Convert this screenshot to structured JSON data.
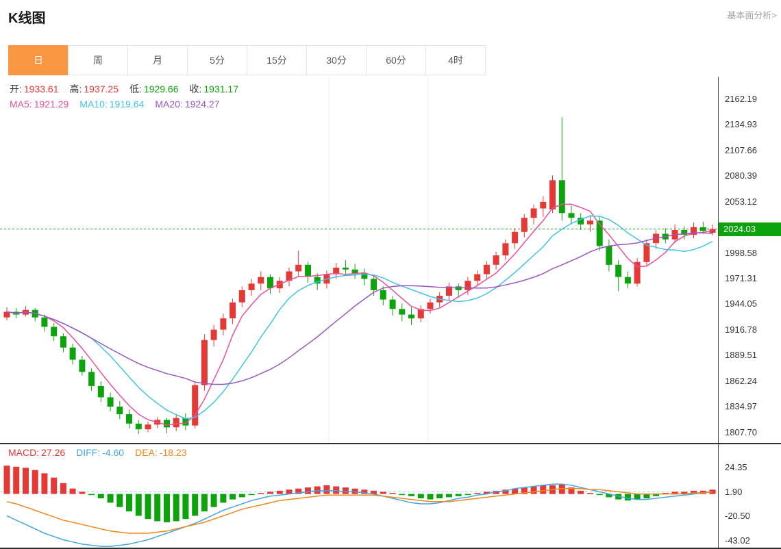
{
  "header": {
    "title": "K线图",
    "link_label": "基本面分析>"
  },
  "tabs": {
    "items": [
      {
        "label": "日",
        "active": true
      },
      {
        "label": "周"
      },
      {
        "label": "月"
      },
      {
        "label": "5分"
      },
      {
        "label": "15分"
      },
      {
        "label": "30分"
      },
      {
        "label": "60分"
      },
      {
        "label": "4时"
      }
    ]
  },
  "ohlc_legend": {
    "items": [
      {
        "label": "开:",
        "value": "1933.61",
        "label_color": "#333333",
        "value_color": "#e53935"
      },
      {
        "label": "高:",
        "value": "1937.25",
        "label_color": "#333333",
        "value_color": "#e53935"
      },
      {
        "label": "低:",
        "value": "1929.66",
        "label_color": "#333333",
        "value_color": "#0ca30c"
      },
      {
        "label": "收:",
        "value": "1931.17",
        "label_color": "#333333",
        "value_color": "#0ca30c"
      }
    ]
  },
  "ma_legend": {
    "items": [
      {
        "label": "MA5:",
        "value": "1921.29",
        "label_color": "#ea4f9c",
        "value_color": "#ea4f9c"
      },
      {
        "label": "MA10:",
        "value": "1919.64",
        "label_color": "#3fc3e8",
        "value_color": "#3fc3e8"
      },
      {
        "label": "MA20:",
        "value": "1924.27",
        "label_color": "#9a55c2",
        "value_color": "#9a55c2"
      }
    ]
  },
  "macd_legend": {
    "items": [
      {
        "label": "MACD:",
        "value": "27.26",
        "label_color": "#e53935",
        "value_color": "#e53935"
      },
      {
        "label": "DIFF:",
        "value": "-4.60",
        "label_color": "#42a6e0",
        "value_color": "#42a6e0"
      },
      {
        "label": "DEA:",
        "value": "-18.23",
        "label_color": "#f0861c",
        "value_color": "#f0861c"
      }
    ]
  },
  "colors": {
    "up": "#e53935",
    "down": "#0ca30c",
    "tab_active": "#fa9642",
    "current_tag_bg": "#0ca30c",
    "ma5": "#ea4f9c",
    "ma10": "#3fc3e8",
    "ma20": "#9a55c2",
    "diff": "#42a6e0",
    "dea": "#f0861c",
    "baseline": "#8fd8ec",
    "axis_text": "#333333"
  },
  "chart_data": {
    "type": "candlestick",
    "title": "K线图 (日)",
    "legend_position": "top-left",
    "panels": [
      {
        "name": "price",
        "ylim": [
          1796.5,
          2186.2
        ],
        "axis_labels": [
          "2162.19",
          "2134.93",
          "2107.66",
          "2080.39",
          "2053.12",
          "1998.58",
          "1971.31",
          "1944.05",
          "1916.78",
          "1889.51",
          "1862.24",
          "1834.97",
          "1807.70"
        ],
        "current_price": 2024.03,
        "current_price_label": "2024.03",
        "ma_periods": [
          5,
          10,
          20
        ],
        "candles": [
          [
            1930,
            1941,
            1927,
            1936
          ],
          [
            1936,
            1940,
            1929,
            1933
          ],
          [
            1933,
            1942,
            1931,
            1938
          ],
          [
            1938,
            1940,
            1926,
            1930
          ],
          [
            1930,
            1933,
            1915,
            1920
          ],
          [
            1920,
            1924,
            1905,
            1910
          ],
          [
            1910,
            1913,
            1893,
            1898
          ],
          [
            1898,
            1902,
            1880,
            1885
          ],
          [
            1885,
            1889,
            1868,
            1872
          ],
          [
            1872,
            1876,
            1852,
            1857
          ],
          [
            1857,
            1862,
            1840,
            1845
          ],
          [
            1845,
            1850,
            1830,
            1835
          ],
          [
            1835,
            1841,
            1822,
            1827
          ],
          [
            1827,
            1832,
            1812,
            1817
          ],
          [
            1817,
            1821,
            1806,
            1811
          ],
          [
            1811,
            1819,
            1808,
            1816
          ],
          [
            1816,
            1824,
            1812,
            1821
          ],
          [
            1821,
            1823,
            1807,
            1813
          ],
          [
            1813,
            1826,
            1809,
            1823
          ],
          [
            1823,
            1828,
            1810,
            1815
          ],
          [
            1815,
            1862,
            1812,
            1858
          ],
          [
            1858,
            1912,
            1852,
            1906
          ],
          [
            1906,
            1922,
            1899,
            1917
          ],
          [
            1917,
            1934,
            1911,
            1929
          ],
          [
            1929,
            1950,
            1923,
            1946
          ],
          [
            1946,
            1963,
            1941,
            1959
          ],
          [
            1959,
            1971,
            1953,
            1966
          ],
          [
            1966,
            1979,
            1959,
            1973
          ],
          [
            1973,
            1976,
            1955,
            1961
          ],
          [
            1961,
            1973,
            1956,
            1969
          ],
          [
            1969,
            1983,
            1963,
            1979
          ],
          [
            1979,
            2001,
            1973,
            1986
          ],
          [
            1986,
            1989,
            1967,
            1973
          ],
          [
            1973,
            1977,
            1959,
            1966
          ],
          [
            1966,
            1980,
            1961,
            1976
          ],
          [
            1976,
            1988,
            1971,
            1983
          ],
          [
            1983,
            1991,
            1976,
            1981
          ],
          [
            1981,
            1987,
            1971,
            1977
          ],
          [
            1977,
            1982,
            1964,
            1971
          ],
          [
            1971,
            1974,
            1953,
            1959
          ],
          [
            1959,
            1963,
            1943,
            1949
          ],
          [
            1949,
            1953,
            1932,
            1939
          ],
          [
            1939,
            1945,
            1926,
            1933
          ],
          [
            1933,
            1941,
            1922,
            1929
          ],
          [
            1929,
            1943,
            1925,
            1939
          ],
          [
            1939,
            1950,
            1934,
            1946
          ],
          [
            1946,
            1957,
            1941,
            1953
          ],
          [
            1953,
            1967,
            1948,
            1963
          ],
          [
            1963,
            1966,
            1951,
            1959
          ],
          [
            1959,
            1973,
            1954,
            1969
          ],
          [
            1969,
            1980,
            1963,
            1976
          ],
          [
            1976,
            1990,
            1971,
            1986
          ],
          [
            1986,
            2000,
            1981,
            1996
          ],
          [
            1996,
            2013,
            1991,
            2009
          ],
          [
            2009,
            2025,
            2003,
            2021
          ],
          [
            2021,
            2040,
            2015,
            2036
          ],
          [
            2036,
            2050,
            2029,
            2046
          ],
          [
            2046,
            2059,
            2037,
            2053
          ],
          [
            2045,
            2081,
            2041,
            2076
          ],
          [
            2076,
            2143,
            2033,
            2041
          ],
          [
            2041,
            2049,
            2029,
            2036
          ],
          [
            2036,
            2041,
            2023,
            2029
          ],
          [
            2029,
            2039,
            2021,
            2033
          ],
          [
            2033,
            2037,
            2001,
            2006
          ],
          [
            2006,
            2013,
            1979,
            1986
          ],
          [
            1986,
            1991,
            1958,
            1973
          ],
          [
            1973,
            1979,
            1961,
            1966
          ],
          [
            1966,
            1993,
            1963,
            1989
          ],
          [
            1989,
            2013,
            1985,
            2009
          ],
          [
            2009,
            2023,
            2003,
            2019
          ],
          [
            2019,
            2025,
            2009,
            2013
          ],
          [
            2013,
            2029,
            2009,
            2023
          ],
          [
            2023,
            2027,
            2013,
            2018
          ],
          [
            2018,
            2031,
            2014,
            2026
          ],
          [
            2026,
            2032,
            2019,
            2022
          ],
          [
            2020,
            2029,
            2017,
            2024.03
          ]
        ]
      },
      {
        "name": "macd",
        "ylim": [
          -49.2,
          45.6
        ],
        "axis_labels": [
          "24.35",
          "1.90",
          "-20.50",
          "-43.02"
        ],
        "baseline": 1.9,
        "hist": [
          26,
          25,
          24,
          22,
          19,
          15,
          10,
          5,
          2,
          -1,
          -4,
          -8,
          -12,
          -16,
          -20,
          -23,
          -25,
          -26,
          -25,
          -23,
          -20,
          -16,
          -12,
          -8,
          -5,
          -3,
          -1,
          1,
          2,
          3,
          4,
          5,
          6,
          7,
          8,
          7,
          6,
          5,
          4,
          3,
          2,
          1,
          -1,
          -2,
          -4,
          -5,
          -4,
          -3,
          -2,
          -1,
          1,
          2,
          3,
          4,
          5,
          6,
          7,
          8,
          8,
          9,
          6,
          3,
          1,
          -1,
          -3,
          -5,
          -6,
          -5,
          -4,
          -2,
          1,
          2,
          2,
          3,
          3,
          4
        ],
        "diff": [
          -20,
          -24,
          -28,
          -32,
          -36,
          -39,
          -42,
          -44,
          -46,
          -47,
          -48,
          -48,
          -47,
          -46,
          -44,
          -42,
          -39,
          -36,
          -33,
          -30,
          -27,
          -23,
          -19,
          -15,
          -12,
          -9,
          -6,
          -4,
          -2,
          -1,
          0,
          1,
          2,
          3,
          3,
          3,
          2,
          2,
          1,
          0,
          -2,
          -4,
          -6,
          -8,
          -9,
          -9,
          -8,
          -6,
          -4,
          -3,
          -1,
          0,
          2,
          3,
          5,
          6,
          7,
          8,
          9,
          9,
          8,
          6,
          4,
          2,
          0,
          -2,
          -4,
          -5,
          -5,
          -4,
          -3,
          -2,
          -1,
          0,
          1,
          2
        ],
        "dea": [
          -7,
          -9,
          -12,
          -15,
          -18,
          -21,
          -24,
          -26,
          -28,
          -30,
          -32,
          -34,
          -35,
          -36,
          -36,
          -36,
          -35,
          -34,
          -32,
          -30,
          -28,
          -26,
          -23,
          -20,
          -17,
          -14,
          -12,
          -10,
          -8,
          -6,
          -5,
          -4,
          -3,
          -2,
          -1,
          -1,
          -1,
          -1,
          -1,
          -1,
          -2,
          -3,
          -4,
          -5,
          -6,
          -7,
          -7,
          -7,
          -6,
          -5,
          -4,
          -3,
          -2,
          -1,
          0,
          1,
          2,
          3,
          4,
          5,
          5,
          5,
          4,
          4,
          3,
          2,
          1,
          0,
          0,
          0,
          0,
          0,
          0,
          1,
          1,
          2
        ]
      }
    ]
  }
}
